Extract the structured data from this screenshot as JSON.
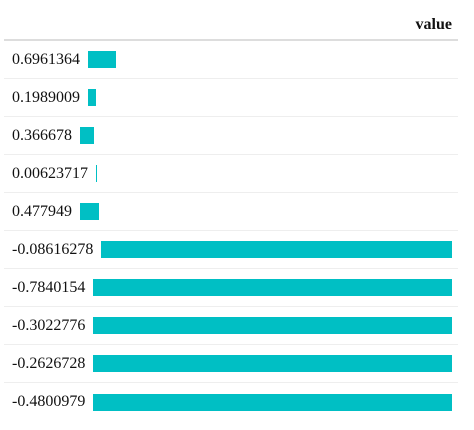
{
  "table": {
    "header": "value",
    "rows": [
      "0.6961364",
      "0.1989009",
      "0.366678",
      "0.00623717",
      "0.477949",
      "-0.08616278",
      "-0.7840154",
      "-0.3022776",
      "-0.2626728",
      "-0.4800979"
    ]
  }
}
